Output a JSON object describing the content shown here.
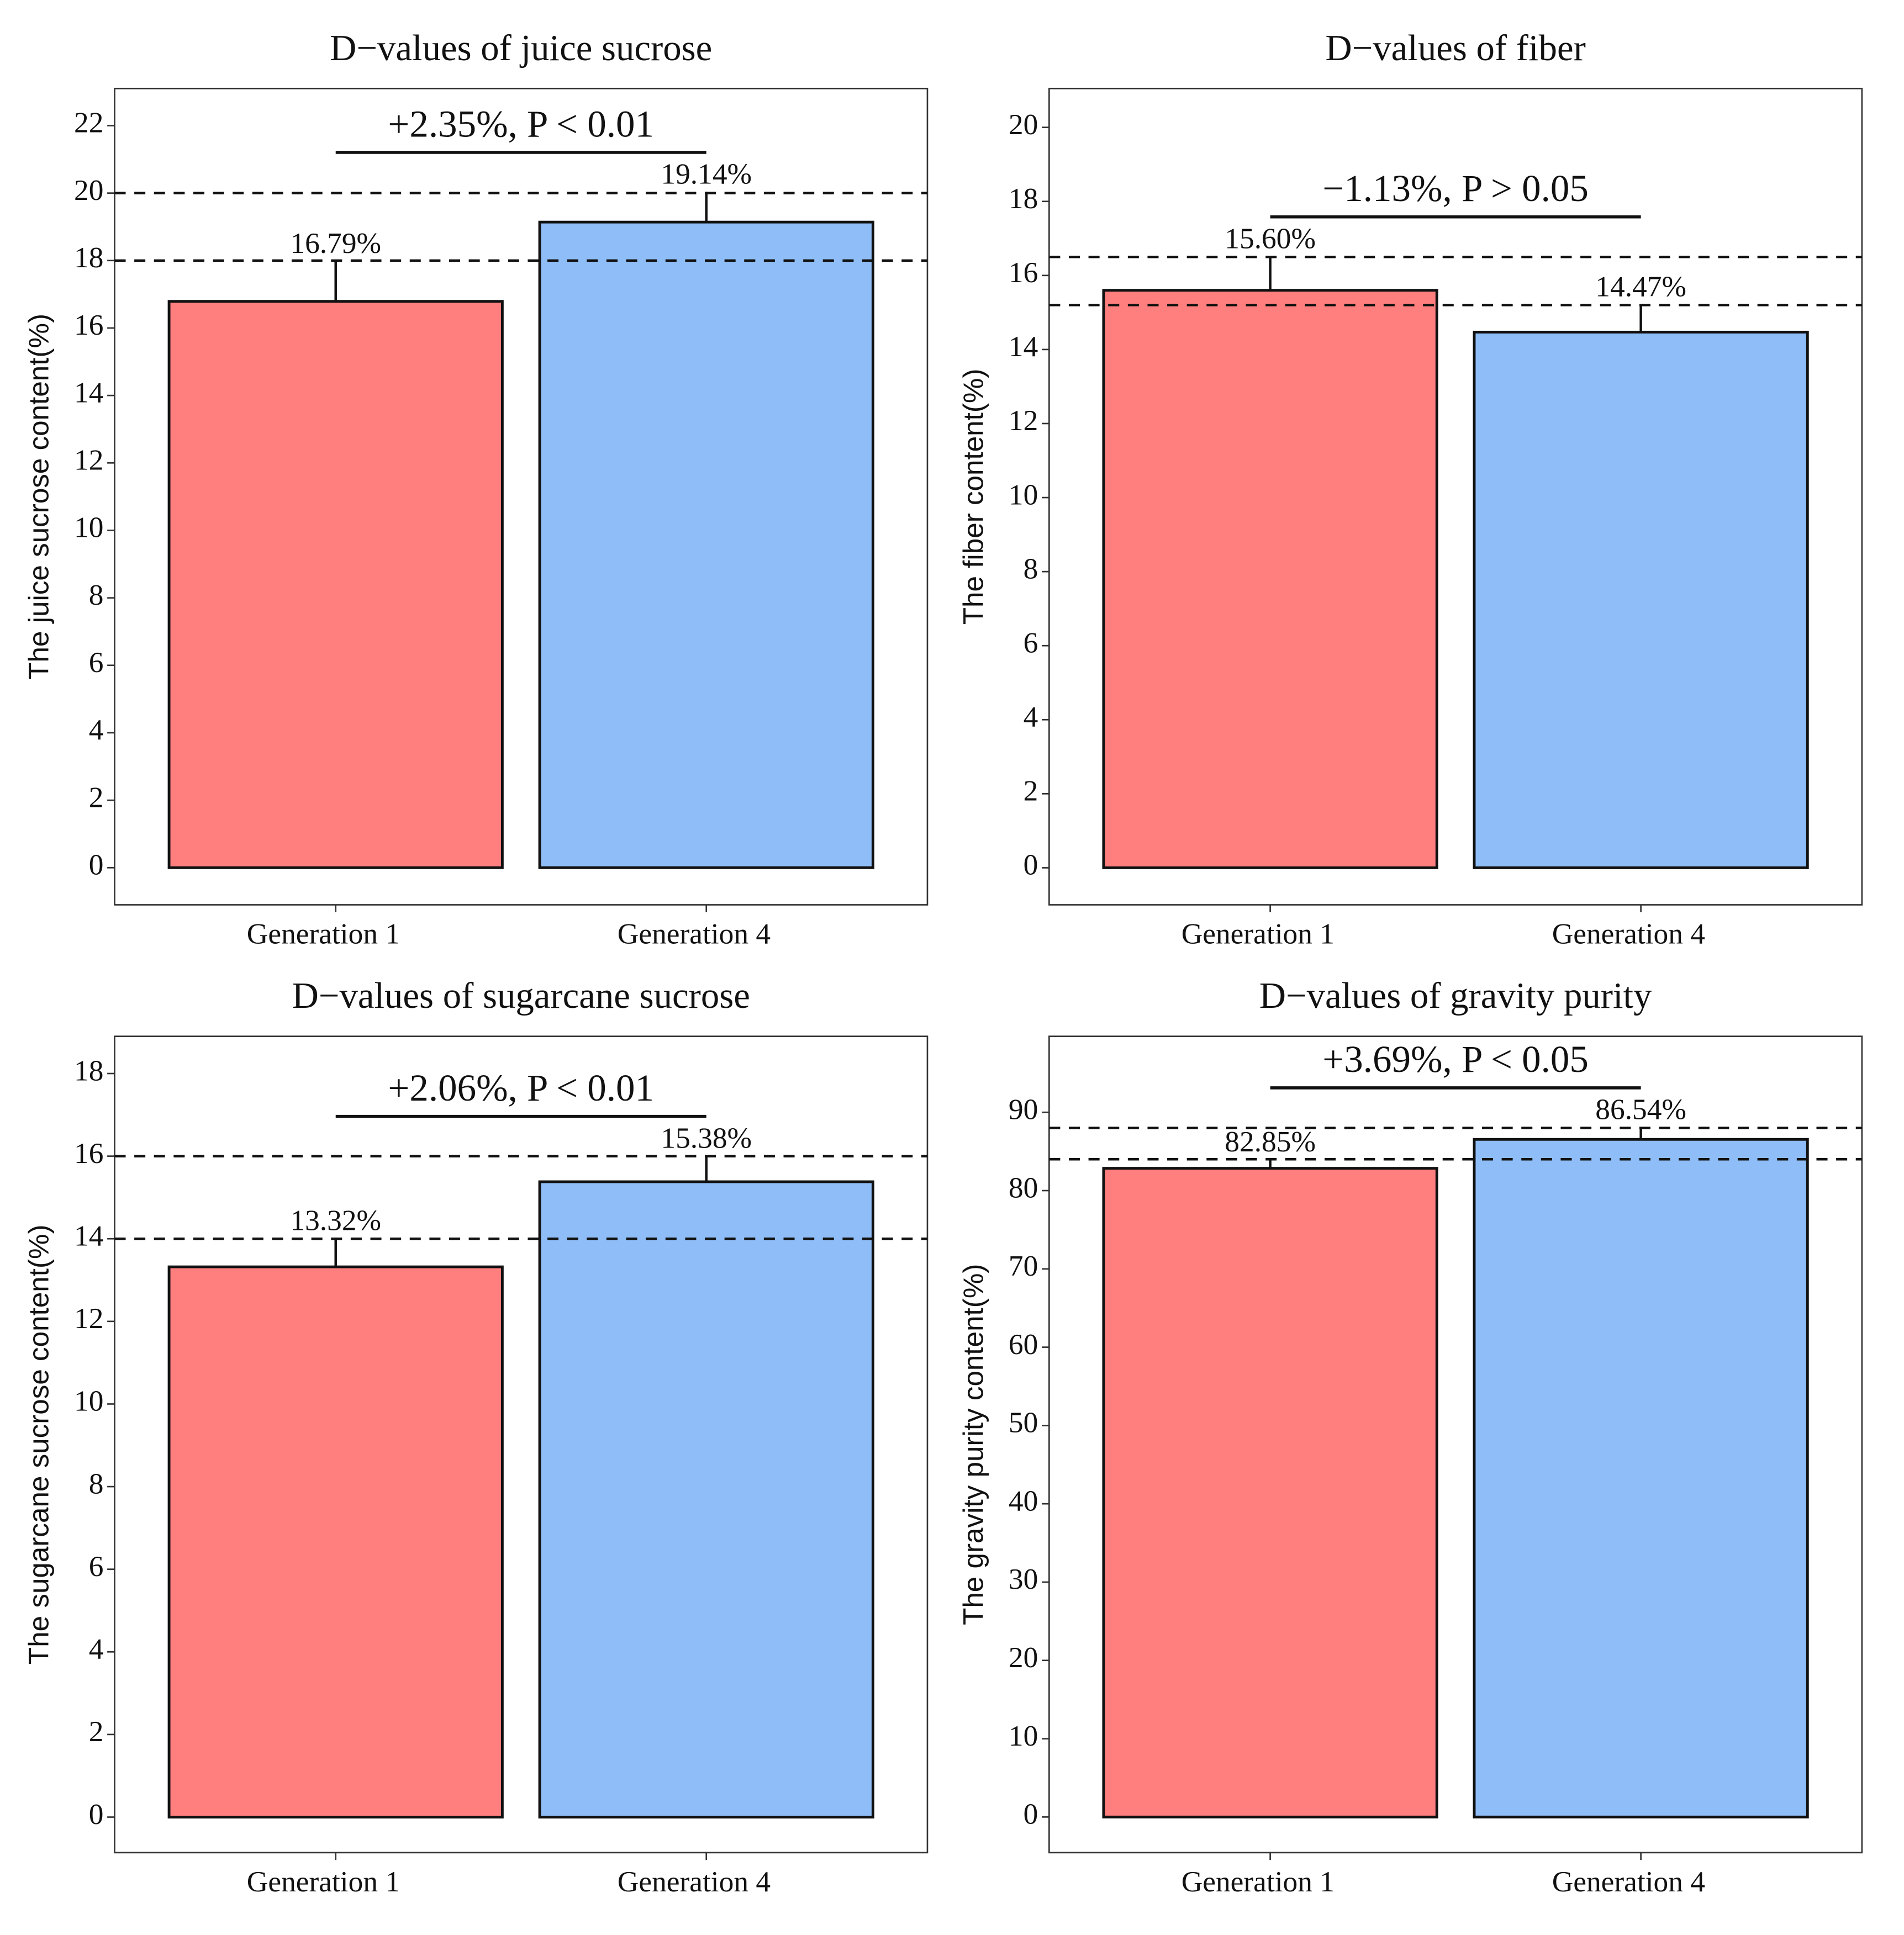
{
  "chart_data": [
    {
      "type": "bar",
      "title": "D−values of juice sucrose",
      "ylabel": "The juice sucrose content(%)",
      "categories": [
        "Generation 1",
        "Generation 4"
      ],
      "values": [
        16.79,
        19.14
      ],
      "value_labels": [
        "16.79%",
        "19.14%"
      ],
      "errors": [
        1.2,
        0.9
      ],
      "colors": [
        "#ff7f7f",
        "#8fbdf7"
      ],
      "ylim": [
        -1.1,
        23.1
      ],
      "yticks": [
        0,
        2,
        4,
        6,
        8,
        10,
        12,
        14,
        16,
        18,
        20,
        22
      ],
      "reference_lines": [
        18,
        20
      ],
      "annotation": "+2.35%, P < 0.01"
    },
    {
      "type": "bar",
      "title": "D−values of fiber",
      "ylabel": "The fiber content(%)",
      "categories": [
        "Generation 1",
        "Generation 4"
      ],
      "values": [
        15.6,
        14.47
      ],
      "value_labels": [
        "15.60%",
        "14.47%"
      ],
      "errors": [
        0.92,
        0.75
      ],
      "colors": [
        "#ff7f7f",
        "#8fbdf7"
      ],
      "ylim": [
        -1.0,
        21.05
      ],
      "yticks": [
        0,
        2,
        4,
        6,
        8,
        10,
        12,
        14,
        16,
        18,
        20
      ],
      "reference_lines": [
        15.2,
        16.5
      ],
      "annotation": "−1.13%, P > 0.05"
    },
    {
      "type": "bar",
      "title": "D−values of sugarcane sucrose",
      "ylabel": "The sugarcane sucrose content(%)",
      "categories": [
        "Generation 1",
        "Generation 4"
      ],
      "values": [
        13.32,
        15.38
      ],
      "value_labels": [
        "13.32%",
        "15.38%"
      ],
      "errors": [
        0.7,
        0.63
      ],
      "colors": [
        "#ff7f7f",
        "#8fbdf7"
      ],
      "ylim": [
        -0.86,
        18.9
      ],
      "yticks": [
        0,
        2,
        4,
        6,
        8,
        10,
        12,
        14,
        16,
        18
      ],
      "reference_lines": [
        14,
        16
      ],
      "annotation": "+2.06%, P < 0.01"
    },
    {
      "type": "bar",
      "title": "D−values of gravity purity",
      "ylabel": "The gravity purity content(%)",
      "categories": [
        "Generation 1",
        "Generation 4"
      ],
      "values": [
        82.85,
        86.54
      ],
      "value_labels": [
        "82.85%",
        "86.54%"
      ],
      "errors": [
        1.15,
        1.56
      ],
      "colors": [
        "#ff7f7f",
        "#8fbdf7"
      ],
      "ylim": [
        -4.55,
        99.7
      ],
      "yticks": [
        0,
        10,
        20,
        30,
        40,
        50,
        60,
        70,
        80,
        90
      ],
      "reference_lines": [
        84,
        88
      ],
      "annotation": "+3.69%, P < 0.05"
    }
  ]
}
